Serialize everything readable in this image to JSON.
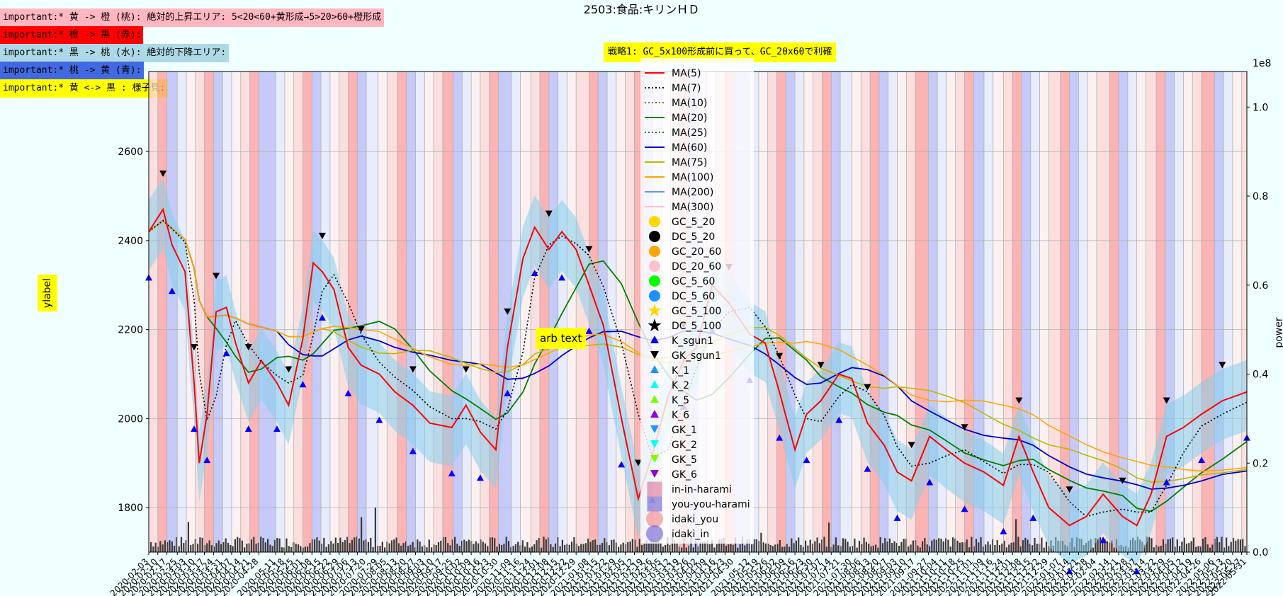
{
  "notes": [
    {
      "text": "important:* 黄 -> 橙 (桃): 絶対的上昇エリア: 5<20<60+黄形成→5>20>60+橙形成",
      "bg": "#ffb6c1"
    },
    {
      "text": "important:* 橙 -> 黒 (赤):",
      "bg": "#ff0000"
    },
    {
      "text": "important:* 黒 -> 桃 (水): 絶対的下降エリア:",
      "bg": "#add8e6"
    },
    {
      "text": "important:* 桃 -> 黄 (青):",
      "bg": "#4169e1"
    },
    {
      "text": "important:* 黄 <-> 黒 : 様子見:",
      "bg": "#ffff00"
    }
  ],
  "title": "2503:食品:キリンＨＤ",
  "strategy": "戦略1: GC_5x100形成前に買って、GC_20x60で利確",
  "annotation": "arb text",
  "chart_data": {
    "type": "line",
    "title": "2503:食品:キリンＨＤ",
    "ylabel": "ylabel",
    "y2label": "power",
    "y2_exponent": "1e8",
    "ylim": [
      1700,
      2780
    ],
    "y2lim": [
      0,
      1.08
    ],
    "yticks": [
      1800,
      2000,
      2200,
      2400,
      2600
    ],
    "y2ticks": [
      "0.0",
      "0.2",
      "0.4",
      "0.6",
      "0.8",
      "1.0"
    ],
    "xlim": [
      "2020-02-03",
      "2022-05-31"
    ],
    "xticks": [
      "2020-02-03",
      "2020-02-10",
      "2020-02-17",
      "2020-02-25",
      "2020-03-03",
      "2020-03-10",
      "2020-03-17",
      "2020-03-24",
      "2020-03-31",
      "2020-04-07",
      "2020-04-14",
      "2020-04-21",
      "2020-04-28",
      "2020-05-11",
      "2020-05-18",
      "2020-05-25",
      "2020-06-01",
      "2020-06-08",
      "2020-06-15",
      "2020-06-22",
      "2020-06-29",
      "2020-07-06",
      "2020-07-13",
      "2020-07-20",
      "2020-07-29",
      "2020-08-05",
      "2020-08-13",
      "2020-08-20",
      "2020-08-27",
      "2020-09-03",
      "2020-09-10",
      "2020-09-17",
      "2020-09-25",
      "2020-10-02",
      "2020-10-09",
      "2020-10-16",
      "2020-10-23",
      "2020-10-30",
      "2020-11-09",
      "2020-11-16",
      "2020-11-24",
      "2020-12-01",
      "2020-12-08",
      "2020-12-15",
      "2020-12-22",
      "2020-12-29",
      "2021-01-08",
      "2021-01-15",
      "2021-01-22",
      "2021-01-29",
      "2021-02-05",
      "2021-02-12",
      "2021-02-19",
      "2021-02-26",
      "2021-03-05",
      "2021-03-12",
      "2021-03-19",
      "2021-03-26",
      "2021-04-02",
      "2021-04-09",
      "2021-04-16",
      "2021-04-23",
      "2021-04-30",
      "2021-05-12",
      "2021-05-19",
      "2021-05-26",
      "2021-06-02",
      "2021-06-09",
      "2021-06-16",
      "2021-06-23",
      "2021-06-30",
      "2021-07-07",
      "2021-07-14",
      "2021-07-21",
      "2021-07-30",
      "2021-08-06",
      "2021-08-13",
      "2021-08-20",
      "2021-08-27",
      "2021-09-03",
      "2021-09-10",
      "2021-09-17",
      "2021-09-27",
      "2021-10-04",
      "2021-10-11",
      "2021-10-18",
      "2021-10-25",
      "2021-11-01",
      "2021-11-09",
      "2021-11-16",
      "2021-11-24",
      "2021-12-01",
      "2021-12-08",
      "2021-12-15",
      "2021-12-22",
      "2021-12-29",
      "2022-01-07",
      "2022-01-14",
      "2022-01-21",
      "2022-01-28",
      "2022-02-04",
      "2022-02-14",
      "2022-02-21",
      "2022-02-28",
      "2022-03-07",
      "2022-03-14",
      "2022-03-22",
      "2022-03-29",
      "2022-04-05",
      "2022-04-12",
      "2022-04-19",
      "2022-04-26",
      "2022-05-06",
      "2022-05-13",
      "2022-05-20",
      "2022-05-27",
      "2022-05-31"
    ],
    "grid": true,
    "legend_position": "center",
    "legend": [
      {
        "label": "MA(5)",
        "marker": "line",
        "color": "#ff0000",
        "dash": "solid"
      },
      {
        "label": "MA(7)",
        "marker": "line",
        "color": "#000000",
        "dash": "dotted"
      },
      {
        "label": "MA(10)",
        "marker": "line",
        "color": "#808000",
        "dash": "dotted"
      },
      {
        "label": "MA(20)",
        "marker": "line",
        "color": "#008000",
        "dash": "solid"
      },
      {
        "label": "MA(25)",
        "marker": "line",
        "color": "#008000",
        "dash": "dotted"
      },
      {
        "label": "MA(60)",
        "marker": "line",
        "color": "#0000cd",
        "dash": "solid"
      },
      {
        "label": "MA(75)",
        "marker": "line",
        "color": "#bdb700",
        "dash": "solid"
      },
      {
        "label": "MA(100)",
        "marker": "line",
        "color": "#ffa500",
        "dash": "solid"
      },
      {
        "label": "MA(200)",
        "marker": "line",
        "color": "#6495ed",
        "dash": "solid"
      },
      {
        "label": "MA(300)",
        "marker": "line",
        "color": "#ffc0cb",
        "dash": "solid"
      },
      {
        "label": "GC_5_20",
        "marker": "circle",
        "color": "#ffd700"
      },
      {
        "label": "DC_5_20",
        "marker": "circle",
        "color": "#000000"
      },
      {
        "label": "GC_20_60",
        "marker": "circle",
        "color": "#ffa500"
      },
      {
        "label": "DC_20_60",
        "marker": "circle",
        "color": "#ffc0cb"
      },
      {
        "label": "GC_5_60",
        "marker": "circle",
        "color": "#00ff00"
      },
      {
        "label": "DC_5_60",
        "marker": "circle",
        "color": "#1e90ff"
      },
      {
        "label": "GC_5_100",
        "marker": "star",
        "color": "#ffd700"
      },
      {
        "label": "DC_5_100",
        "marker": "star",
        "color": "#000000"
      },
      {
        "label": "K_sgun1",
        "marker": "tri-up",
        "color": "#0000ff"
      },
      {
        "label": "GK_sgun1",
        "marker": "tri-down",
        "color": "#000000"
      },
      {
        "label": "K_1",
        "marker": "tri-up",
        "color": "#1e90ff"
      },
      {
        "label": "K_2",
        "marker": "tri-up",
        "color": "#00ffff"
      },
      {
        "label": "K_5",
        "marker": "tri-up",
        "color": "#7cfc00"
      },
      {
        "label": "K_6",
        "marker": "tri-up",
        "color": "#9400d3"
      },
      {
        "label": "GK_1",
        "marker": "tri-down",
        "color": "#1e90ff"
      },
      {
        "label": "GK_2",
        "marker": "tri-down",
        "color": "#00ffff"
      },
      {
        "label": "GK_5",
        "marker": "tri-down",
        "color": "#7cfc00"
      },
      {
        "label": "GK_6",
        "marker": "tri-down",
        "color": "#9400d3"
      },
      {
        "label": "in-in-harami",
        "marker": "square",
        "color": "#db7093"
      },
      {
        "label": "you-you-harami",
        "marker": "square",
        "color": "#6a5acd"
      },
      {
        "label": "idaki_you",
        "marker": "bigcircle",
        "color": "#f08080"
      },
      {
        "label": "idaki_in",
        "marker": "bigcircle",
        "color": "#6a5acd"
      }
    ],
    "close_path": [
      [
        "2020-02-03",
        2420
      ],
      [
        "2020-02-14",
        2470
      ],
      [
        "2020-02-21",
        2390
      ],
      [
        "2020-03-02",
        2330
      ],
      [
        "2020-03-09",
        2080
      ],
      [
        "2020-03-13",
        1900
      ],
      [
        "2020-03-19",
        2010
      ],
      [
        "2020-03-26",
        2240
      ],
      [
        "2020-04-03",
        2250
      ],
      [
        "2020-04-10",
        2170
      ],
      [
        "2020-04-20",
        2080
      ],
      [
        "2020-04-30",
        2130
      ],
      [
        "2020-05-12",
        2080
      ],
      [
        "2020-05-21",
        2030
      ],
      [
        "2020-06-01",
        2180
      ],
      [
        "2020-06-09",
        2350
      ],
      [
        "2020-06-16",
        2330
      ],
      [
        "2020-06-25",
        2290
      ],
      [
        "2020-07-06",
        2160
      ],
      [
        "2020-07-16",
        2120
      ],
      [
        "2020-07-30",
        2100
      ],
      [
        "2020-08-11",
        2060
      ],
      [
        "2020-08-25",
        2030
      ],
      [
        "2020-09-07",
        1990
      ],
      [
        "2020-09-24",
        1980
      ],
      [
        "2020-10-05",
        2030
      ],
      [
        "2020-10-16",
        1970
      ],
      [
        "2020-10-28",
        1930
      ],
      [
        "2020-11-06",
        2160
      ],
      [
        "2020-11-18",
        2360
      ],
      [
        "2020-11-27",
        2430
      ],
      [
        "2020-12-08",
        2380
      ],
      [
        "2020-12-18",
        2420
      ],
      [
        "2020-12-29",
        2380
      ],
      [
        "2021-01-08",
        2300
      ],
      [
        "2021-01-19",
        2210
      ],
      [
        "2021-02-02",
        2000
      ],
      [
        "2021-02-15",
        1820
      ],
      [
        "2021-02-26",
        1920
      ],
      [
        "2021-03-10",
        2050
      ],
      [
        "2021-03-22",
        2130
      ],
      [
        "2021-04-01",
        2160
      ],
      [
        "2021-04-13",
        2300
      ],
      [
        "2021-04-26",
        2260
      ],
      [
        "2021-05-12",
        2190
      ],
      [
        "2021-05-24",
        2170
      ],
      [
        "2021-06-04",
        2060
      ],
      [
        "2021-06-16",
        1930
      ],
      [
        "2021-06-25",
        2010
      ],
      [
        "2021-07-06",
        2040
      ],
      [
        "2021-07-20",
        2100
      ],
      [
        "2021-07-30",
        2090
      ],
      [
        "2021-08-11",
        1990
      ],
      [
        "2021-08-24",
        1940
      ],
      [
        "2021-09-03",
        1880
      ],
      [
        "2021-09-14",
        1860
      ],
      [
        "2021-09-28",
        1960
      ],
      [
        "2021-10-11",
        1930
      ],
      [
        "2021-10-25",
        1900
      ],
      [
        "2021-11-09",
        1880
      ],
      [
        "2021-11-24",
        1850
      ],
      [
        "2021-12-06",
        1960
      ],
      [
        "2021-12-17",
        1880
      ],
      [
        "2021-12-29",
        1800
      ],
      [
        "2022-01-14",
        1760
      ],
      [
        "2022-01-27",
        1780
      ],
      [
        "2022-02-09",
        1830
      ],
      [
        "2022-02-24",
        1780
      ],
      [
        "2022-03-07",
        1760
      ],
      [
        "2022-03-18",
        1830
      ],
      [
        "2022-03-30",
        1960
      ],
      [
        "2022-04-12",
        1980
      ],
      [
        "2022-04-26",
        2010
      ],
      [
        "2022-05-12",
        2040
      ],
      [
        "2022-05-31",
        2060
      ]
    ],
    "shaded_periods_note": "vertical bands colored by trend area (pink=up, red=top, lightblue=down, blue=bottom, lavender=wait)"
  }
}
